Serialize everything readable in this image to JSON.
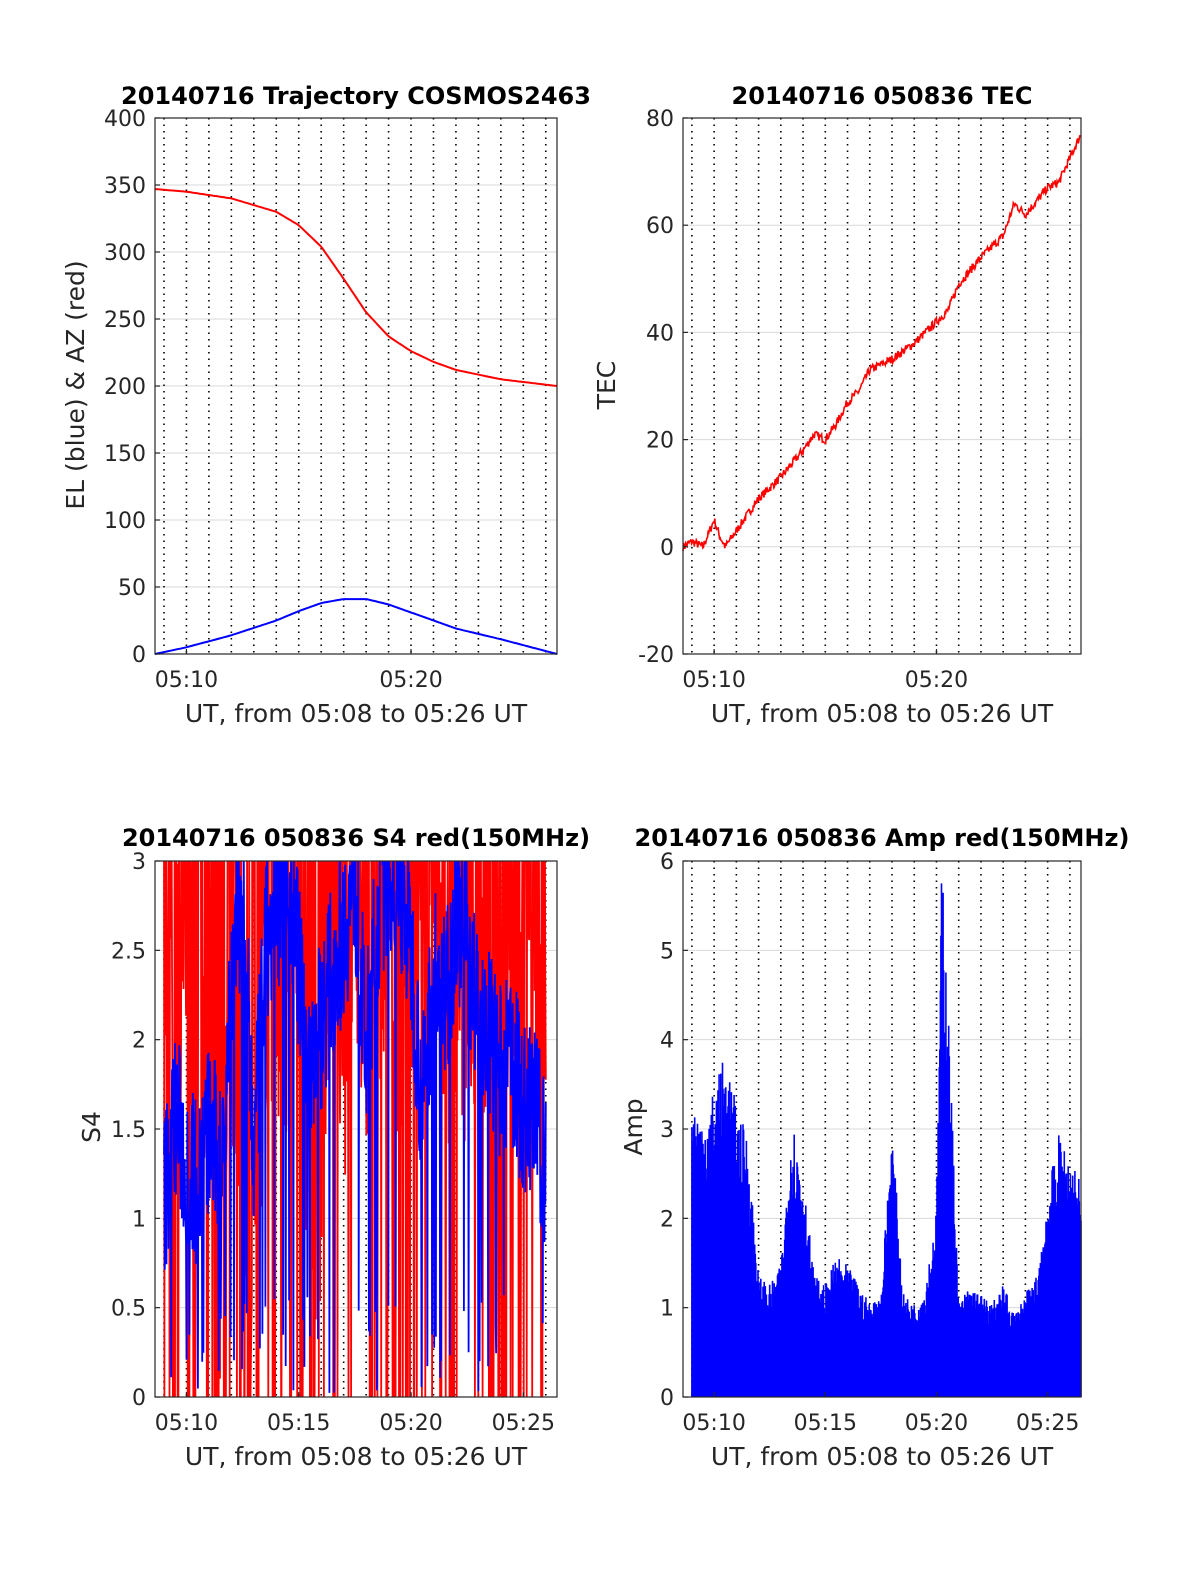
{
  "panels": [
    {
      "id": "traj",
      "title": "20140716 Trajectory COSMOS2463",
      "xlabel": "UT, from 05:08 to 05:26 UT",
      "ylabel": "EL (blue) & AZ (red)",
      "xticks": [
        "05:10",
        "05:20"
      ],
      "yticks": [
        "0",
        "50",
        "100",
        "150",
        "200",
        "250",
        "300",
        "350",
        "400"
      ]
    },
    {
      "id": "tec",
      "title": "20140716 050836 TEC",
      "xlabel": "UT, from 05:08 to 05:26 UT",
      "ylabel": "TEC",
      "xticks": [
        "05:10",
        "05:20"
      ],
      "yticks": [
        "-20",
        "0",
        "20",
        "40",
        "60",
        "80"
      ]
    },
    {
      "id": "s4",
      "title": "20140716 050836 S4 red(150MHz)",
      "xlabel": "UT, from 05:08 to 05:26 UT",
      "ylabel": "S4",
      "xticks": [
        "05:10",
        "05:15",
        "05:20",
        "05:25"
      ],
      "yticks": [
        "0",
        "0.5",
        "1",
        "1.5",
        "2",
        "2.5",
        "3"
      ]
    },
    {
      "id": "amp",
      "title": "20140716 050836 Amp red(150MHz)",
      "xlabel": "UT, from 05:08 to 05:26 UT",
      "ylabel": "Amp",
      "xticks": [
        "05:10",
        "05:15",
        "05:20",
        "05:25"
      ],
      "yticks": [
        "0",
        "1",
        "2",
        "3",
        "4",
        "5",
        "6"
      ]
    }
  ],
  "colors": {
    "red": "#ff0000",
    "blue": "#0000ff",
    "grid": "#d9d9d9",
    "dotted": "#000000",
    "axis": "#262626"
  },
  "chart_data": [
    {
      "type": "line",
      "title": "20140716 Trajectory COSMOS2463",
      "xlabel": "UT, from 05:08 to 05:26 UT",
      "ylabel": "EL (blue) & AZ (red)",
      "xlim": [
        "05:08:36",
        "05:26:30"
      ],
      "ylim": [
        0,
        400
      ],
      "grid": true,
      "x": [
        "05:08:36",
        "05:10:00",
        "05:12:00",
        "05:14:00",
        "05:15:00",
        "05:16:00",
        "05:17:00",
        "05:18:00",
        "05:19:00",
        "05:20:00",
        "05:21:00",
        "05:22:00",
        "05:24:00",
        "05:26:30"
      ],
      "series": [
        {
          "color": "red",
          "values": [
            347,
            345,
            340,
            330,
            320,
            304,
            280,
            255,
            237,
            226,
            218,
            212,
            205,
            200
          ]
        },
        {
          "color": "blue",
          "values": [
            0,
            5,
            14,
            25,
            32,
            38,
            41,
            41,
            37,
            31,
            25,
            19,
            11,
            0
          ]
        }
      ]
    },
    {
      "type": "line",
      "title": "20140716 050836 TEC",
      "xlabel": "UT, from 05:08 to 05:26 UT",
      "ylabel": "TEC",
      "xlim": [
        "05:08:36",
        "05:26:30"
      ],
      "ylim": [
        -20,
        80
      ],
      "grid": true,
      "x": [
        "05:08:36",
        "05:09:00",
        "05:09:30",
        "05:10:00",
        "05:10:15",
        "05:10:30",
        "05:11:00",
        "05:12:00",
        "05:13:00",
        "05:14:00",
        "05:14:30",
        "05:15:00",
        "05:15:30",
        "05:16:00",
        "05:16:30",
        "05:17:00",
        "05:18:00",
        "05:19:00",
        "05:20:00",
        "05:20:30",
        "05:21:00",
        "05:22:00",
        "05:23:00",
        "05:23:30",
        "05:24:00",
        "05:25:00",
        "05:25:30",
        "05:26:30"
      ],
      "series": [
        {
          "color": "red",
          "values": [
            0,
            1,
            0,
            5,
            2,
            0,
            3,
            9,
            13,
            18,
            21,
            20,
            23,
            27,
            29,
            33,
            35,
            38,
            42,
            44,
            49,
            54,
            58,
            64,
            62,
            67,
            68,
            77
          ]
        }
      ]
    },
    {
      "type": "line",
      "title": "20140716 050836 S4 red(150MHz)",
      "xlabel": "UT, from 05:08 to 05:26 UT",
      "ylabel": "S4",
      "xlim": [
        "05:08:36",
        "05:26:30"
      ],
      "ylim": [
        0,
        3
      ],
      "grid": true,
      "x": [
        "05:09:00",
        "05:09:30",
        "05:10:00",
        "05:10:30",
        "05:11:00",
        "05:11:30",
        "05:12:00",
        "05:12:30",
        "05:13:00",
        "05:13:30",
        "05:14:00",
        "05:14:30",
        "05:15:00",
        "05:15:30",
        "05:16:00",
        "05:16:30",
        "05:17:00",
        "05:17:30",
        "05:18:00",
        "05:18:30",
        "05:19:00",
        "05:19:30",
        "05:20:00",
        "05:20:30",
        "05:21:00",
        "05:21:30",
        "05:22:00",
        "05:22:30",
        "05:23:00",
        "05:23:30",
        "05:24:00",
        "05:24:30",
        "05:25:00",
        "05:25:30",
        "05:26:00"
      ],
      "series": [
        {
          "color": "red",
          "values": [
            2.8,
            3,
            3,
            2.5,
            3,
            1.5,
            3,
            2.2,
            1.6,
            3,
            3,
            2.6,
            3,
            2.1,
            1.9,
            3,
            2.8,
            3,
            3,
            3,
            3,
            3,
            3,
            3,
            3,
            3,
            3,
            3,
            3,
            3,
            3,
            3,
            3,
            3,
            3
          ]
        },
        {
          "color": "blue",
          "values": [
            1.1,
            1.6,
            1.3,
            1.2,
            1.5,
            1.3,
            2.3,
            2.9,
            1.3,
            2.5,
            2.7,
            3,
            2.4,
            1.9,
            2.1,
            2.4,
            2.6,
            2.9,
            1.9,
            2.7,
            3,
            2.9,
            2.5,
            1.6,
            2.4,
            2.2,
            2.7,
            2.6,
            2.1,
            2.0,
            1.8,
            1.9,
            1.6,
            1.6,
            1.3
          ]
        }
      ]
    },
    {
      "type": "area",
      "title": "20140716 050836 Amp red(150MHz)",
      "xlabel": "UT, from 05:08 to 05:26 UT",
      "ylabel": "Amp",
      "xlim": [
        "05:08:36",
        "05:26:30"
      ],
      "ylim": [
        0,
        6
      ],
      "grid": true,
      "x": [
        "05:09:00",
        "05:09:30",
        "05:10:00",
        "05:10:30",
        "05:11:00",
        "05:11:30",
        "05:12:00",
        "05:12:30",
        "05:13:00",
        "05:13:30",
        "05:14:00",
        "05:14:30",
        "05:15:00",
        "05:15:30",
        "05:16:00",
        "05:16:30",
        "05:17:00",
        "05:17:30",
        "05:18:00",
        "05:18:30",
        "05:19:00",
        "05:19:30",
        "05:20:00",
        "05:20:15",
        "05:20:30",
        "05:21:00",
        "05:21:30",
        "05:22:00",
        "05:22:30",
        "05:23:00",
        "05:23:30",
        "05:24:00",
        "05:24:30",
        "05:25:00",
        "05:25:30",
        "05:26:00",
        "05:26:30"
      ],
      "series": [
        {
          "color": "blue",
          "values": [
            3.2,
            3.0,
            3.3,
            3.7,
            3.1,
            2.8,
            1.3,
            1.2,
            1.4,
            3.0,
            2.4,
            1.3,
            1.2,
            1.5,
            1.4,
            1.2,
            1.0,
            1.1,
            2.9,
            1.1,
            1.0,
            1.2,
            2.0,
            5.9,
            4.4,
            1.0,
            1.2,
            1.1,
            1.0,
            1.2,
            0.9,
            1.1,
            1.3,
            2.2,
            2.8,
            2.6,
            2.3
          ]
        }
      ]
    }
  ]
}
